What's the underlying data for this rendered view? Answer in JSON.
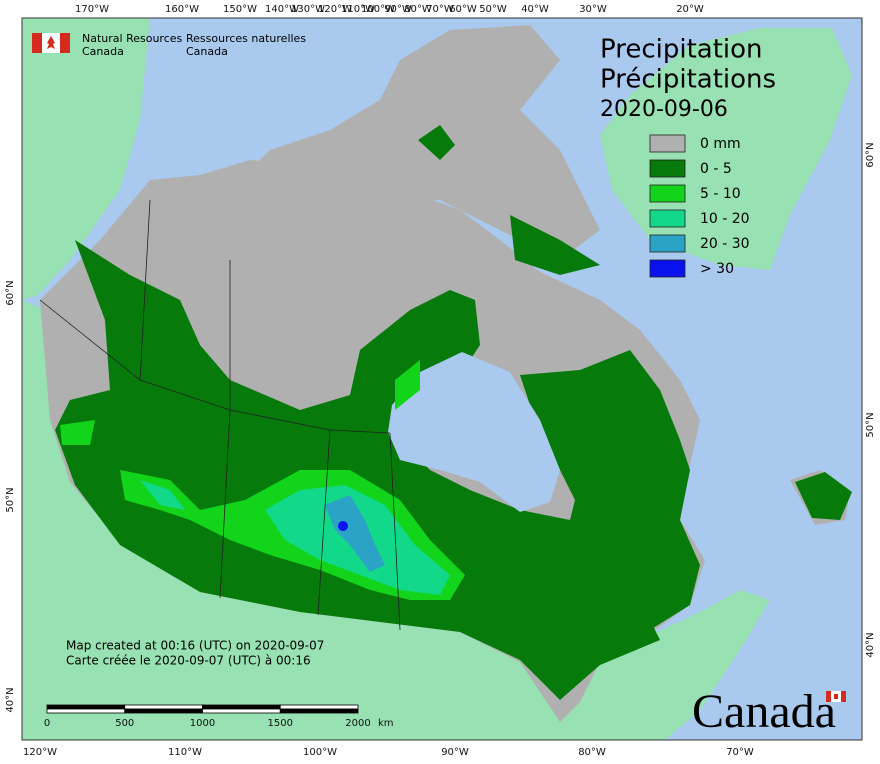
{
  "header": {
    "agency_en": [
      "Natural Resources",
      "Canada"
    ],
    "agency_fr": [
      "Ressources naturelles",
      "Canada"
    ]
  },
  "title": {
    "line_en": "Precipitation",
    "line_fr": "Précipitations",
    "date": "2020-09-06"
  },
  "legend": [
    {
      "label": "0 mm",
      "color": "#b0b0b0"
    },
    {
      "label": "0 - 5",
      "color": "#067a0a"
    },
    {
      "label": "5 - 10",
      "color": "#12d41a"
    },
    {
      "label": "10 - 20",
      "color": "#12d98a"
    },
    {
      "label": "20 - 30",
      "color": "#2aa3c6"
    },
    {
      "label": "> 30",
      "color": "#0a12f0"
    }
  ],
  "graticule": {
    "top": [
      "170°W",
      "160°W",
      "150°W",
      "140°W",
      "130°W",
      "120°W",
      "110°W",
      "100°W",
      "90°W",
      "80°W",
      "70°W",
      "60°W",
      "50°W",
      "40°W",
      "30°W",
      "20°W"
    ],
    "bottom": [
      "120°W",
      "110°W",
      "100°W",
      "90°W",
      "80°W",
      "70°W"
    ],
    "left": [
      "60°N",
      "50°N",
      "40°N"
    ],
    "right": [
      "60°N",
      "50°N",
      "40°N"
    ]
  },
  "notes": [
    "Map created at 00:16 (UTC) on 2020-09-07",
    "Carte créée le 2020-09-07 (UTC) à 00:16"
  ],
  "scale_bar": {
    "labels": [
      "0",
      "500",
      "1000",
      "1500",
      "2000"
    ],
    "unit": "km"
  },
  "wordmark": "Canada"
}
